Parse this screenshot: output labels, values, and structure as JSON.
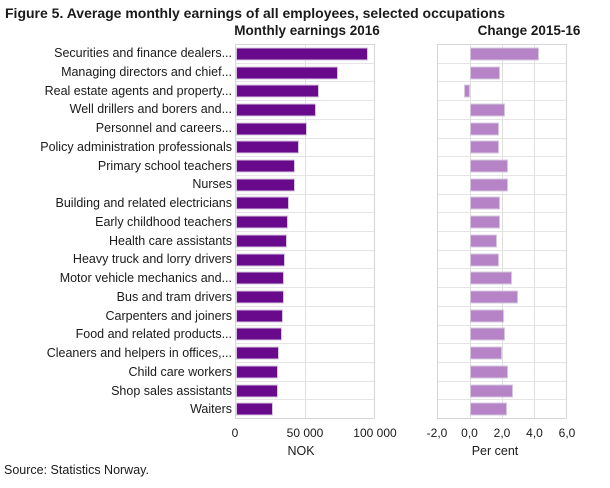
{
  "title": "Figure 5. Average monthly earnings of all employees, selected occupations",
  "source": "Source: Statistics Norway.",
  "colors": {
    "earnings_bar": "#690a8c",
    "change_bar": "#b583c6",
    "gridline": "#dedede",
    "text": "#1a1a1a"
  },
  "chart_data": [
    {
      "type": "bar",
      "orientation": "horizontal",
      "title": "Monthly earnings 2016",
      "xlabel": "NOK",
      "xlim": [
        0,
        100000
      ],
      "xticks": [
        0,
        50000,
        100000
      ],
      "xtick_labels": [
        "0",
        "50 000",
        "100 000"
      ],
      "grid": true,
      "categories": [
        "Securities and finance dealers...",
        "Managing directors and chief...",
        "Real estate agents and property...",
        "Well drillers and borers and...",
        "Personnel and careers...",
        "Policy administration professionals",
        "Primary school teachers",
        "Nurses",
        "Building and related electricians",
        "Early childhood teachers",
        "Health care assistants",
        "Heavy truck and lorry drivers",
        "Motor vehicle mechanics and...",
        "Bus and tram drivers",
        "Carpenters and joiners",
        "Food and related products...",
        "Cleaners and helpers in offices,...",
        "Child care workers",
        "Shop sales assistants",
        "Waiters"
      ],
      "values": [
        95900,
        74200,
        60100,
        58100,
        51400,
        45900,
        43000,
        42500,
        38700,
        37600,
        37200,
        35300,
        34600,
        35100,
        33900,
        33300,
        30800,
        30500,
        30200,
        26500
      ]
    },
    {
      "type": "bar",
      "orientation": "horizontal",
      "title": "Change 2015-16",
      "xlabel": "Per cent",
      "xlim": [
        -2,
        6
      ],
      "xticks": [
        -2,
        0,
        2,
        4,
        6
      ],
      "xtick_labels": [
        "-2,0",
        "0,0",
        "2,0",
        "4,0",
        "6,0"
      ],
      "grid": true,
      "categories": [
        "Securities and finance dealers...",
        "Managing directors and chief...",
        "Real estate agents and property...",
        "Well drillers and borers and...",
        "Personnel and careers...",
        "Policy administration professionals",
        "Primary school teachers",
        "Nurses",
        "Building and related electricians",
        "Early childhood teachers",
        "Health care assistants",
        "Heavy truck and lorry drivers",
        "Motor vehicle mechanics and...",
        "Bus and tram drivers",
        "Carpenters and joiners",
        "Food and related products...",
        "Cleaners and helpers in offices,...",
        "Child care workers",
        "Shop sales assistants",
        "Waiters"
      ],
      "values": [
        4.3,
        1.9,
        -0.4,
        2.2,
        1.8,
        1.8,
        2.4,
        2.4,
        1.9,
        1.9,
        1.7,
        1.8,
        2.6,
        3.0,
        2.1,
        2.2,
        2.0,
        2.4,
        2.7,
        2.3
      ]
    }
  ]
}
